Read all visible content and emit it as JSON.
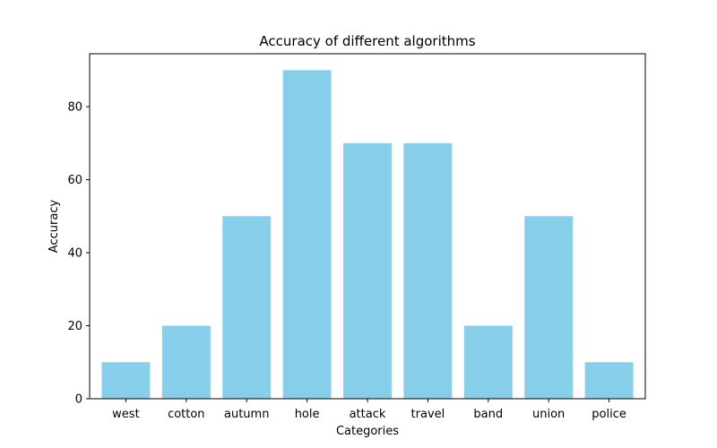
{
  "chart_data": {
    "type": "bar",
    "title": "Accuracy of different algorithms",
    "xlabel": "Categories",
    "ylabel": "Accuracy",
    "categories": [
      "west",
      "cotton",
      "autumn",
      "hole",
      "attack",
      "travel",
      "band",
      "union",
      "police"
    ],
    "values": [
      10,
      20,
      50,
      90,
      70,
      70,
      20,
      50,
      10
    ],
    "ylim": [
      0,
      94.5
    ],
    "yticks": [
      0,
      20,
      40,
      60,
      80
    ],
    "bar_color": "#87ceeb",
    "grid": false,
    "legend": "none"
  }
}
